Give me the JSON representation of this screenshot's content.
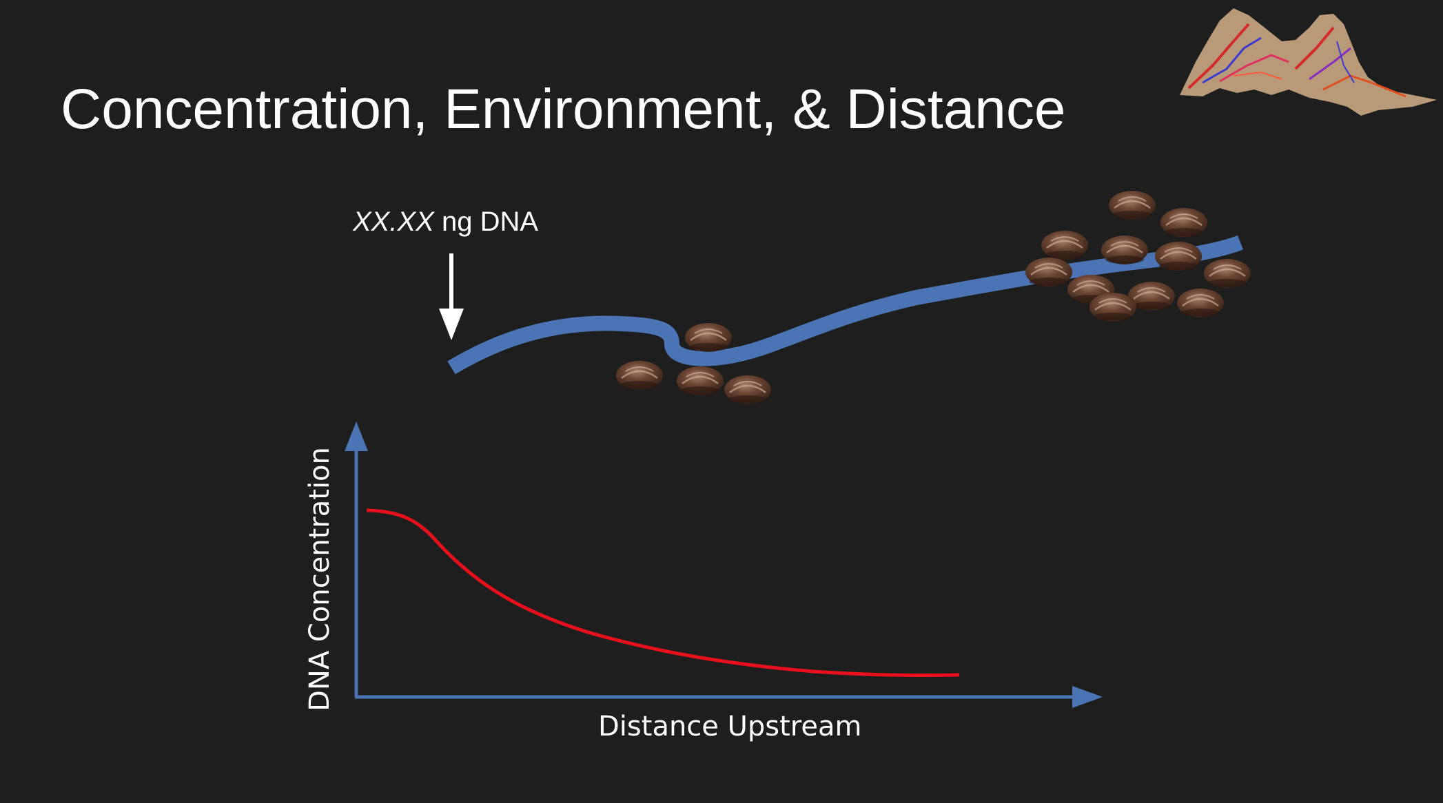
{
  "slide": {
    "title": "Concentration, Environment, & Distance",
    "dna_label": {
      "italic_part": "XX.XX",
      "rest": " ng DNA"
    }
  },
  "chart_data": {
    "type": "line",
    "xlabel": "Distance Upstream",
    "ylabel": "DNA Concentration",
    "series": [
      {
        "color": "#e8101c"
      }
    ]
  },
  "colors": {
    "background": "#1e1e1e",
    "stream": "#4a74b4",
    "axis": "#4a74b4",
    "curve": "#e8101c",
    "mussel": "#5a3a2a"
  },
  "icons": {
    "arrow": "down-arrow-icon",
    "mussel": "mussel-icon",
    "logo": "watershed-map-icon"
  }
}
